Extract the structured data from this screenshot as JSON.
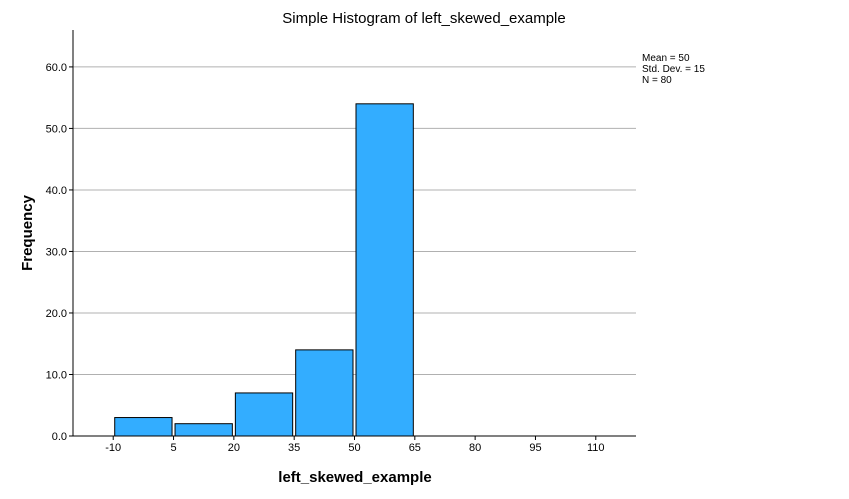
{
  "chart_data": {
    "type": "bar",
    "title": "Simple Histogram of left_skewed_example",
    "xlabel": "left_skewed_example",
    "ylabel": "Frequency",
    "xlim": [
      -20,
      120
    ],
    "ylim": [
      0,
      66
    ],
    "x_ticks": [
      -10,
      5,
      20,
      35,
      50,
      65,
      80,
      95,
      110
    ],
    "x_tick_labels": [
      "-10",
      "5",
      "20",
      "35",
      "50",
      "65",
      "80",
      "95",
      "110"
    ],
    "y_ticks": [
      0,
      10,
      20,
      30,
      40,
      50,
      60
    ],
    "y_tick_labels": [
      "0.0",
      "10.0",
      "20.0",
      "30.0",
      "40.0",
      "50.0",
      "60.0"
    ],
    "grid": true,
    "bins": [
      {
        "start": -10,
        "end": 5,
        "value": 3
      },
      {
        "start": 5,
        "end": 20,
        "value": 2
      },
      {
        "start": 20,
        "end": 35,
        "value": 7
      },
      {
        "start": 35,
        "end": 50,
        "value": 14
      },
      {
        "start": 50,
        "end": 65,
        "value": 54
      }
    ],
    "bar_color": "#33adff",
    "stats": [
      "Mean = 50",
      "Std. Dev. = 15",
      "N = 80"
    ]
  }
}
